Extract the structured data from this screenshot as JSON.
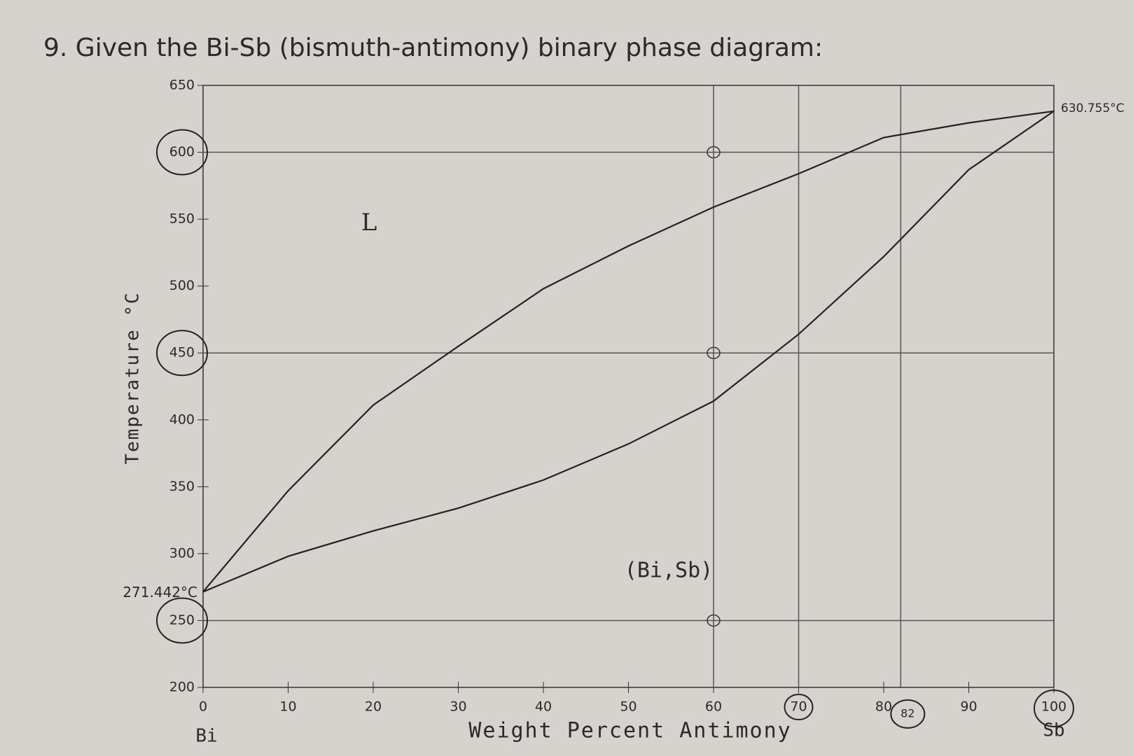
{
  "chart_data": {
    "type": "line",
    "title": "9. Given the Bi-Sb (bismuth-antimony) binary phase diagram:",
    "x_label": "Weight Percent Antimony",
    "y_label": "Temperature °C",
    "x": [
      0,
      10,
      20,
      30,
      40,
      50,
      60,
      70,
      80,
      90,
      100
    ],
    "series": [
      {
        "color": "#222222",
        "values": [
          271.442,
          347,
          411,
          455,
          498,
          530,
          559,
          584,
          611,
          622,
          630.755
        ]
      },
      {
        "color": "#222222",
        "values": [
          271.442,
          298,
          317,
          334,
          355,
          382,
          414,
          464,
          522,
          587,
          630.755
        ]
      }
    ],
    "xlim": [
      0,
      100
    ],
    "ylim": [
      200,
      650
    ],
    "xticks": [
      0,
      10,
      20,
      30,
      40,
      50,
      60,
      70,
      80,
      90,
      100
    ],
    "yticks": [
      200,
      250,
      300,
      350,
      400,
      450,
      500,
      550,
      600,
      650
    ],
    "hlines": [
      600,
      450,
      250
    ],
    "vlines": [
      60,
      70,
      82
    ],
    "annotations": {
      "bi_melt": "271.442°C",
      "sb_melt": "630.755°C",
      "liquid": "L",
      "solid": "(Bi,Sb)",
      "left_end": "Bi",
      "right_end": "Sb"
    }
  }
}
